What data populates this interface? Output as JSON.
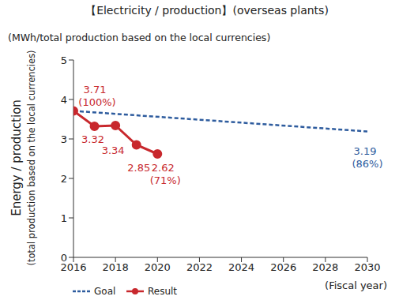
{
  "chart_data": {
    "type": "line",
    "title": "【Electricity / production】(overseas plants)",
    "subtitle": "(MWh/total production based on the local currencies)",
    "x_label": "(Fiscal year)",
    "y_label": [
      "Energy / production",
      "(total production based on the local currencies)"
    ],
    "xlim": [
      2016,
      2030
    ],
    "xticks": [
      2016,
      2018,
      2020,
      2022,
      2024,
      2026,
      2028,
      2030
    ],
    "ylim": [
      0,
      5
    ],
    "yticks": [
      0,
      1,
      2,
      3,
      4,
      5
    ],
    "grid": false,
    "legend": "bottom left",
    "data_labels": true,
    "series": [
      {
        "name": "Goal",
        "color": "#2e5c9e",
        "line_style": "dashed",
        "marker": "none",
        "x": [
          2016,
          2030
        ],
        "values": [
          3.71,
          3.19
        ],
        "value_labels": [
          null,
          "3.19"
        ]
      },
      {
        "name": "Result",
        "color": "#c8282d",
        "line_style": "solid",
        "marker": "circle",
        "x": [
          2016,
          2017,
          2018,
          2019,
          2020
        ],
        "values": [
          3.71,
          3.32,
          3.34,
          2.85,
          2.62
        ]
      }
    ],
    "annotations": [
      {
        "text": "(100%)",
        "x": 2016,
        "y": 3.71
      },
      {
        "text": "(71%)",
        "x": 2020,
        "y": 2.62
      },
      {
        "text": "(86%)",
        "x": 2030,
        "y": 3.19
      }
    ]
  }
}
